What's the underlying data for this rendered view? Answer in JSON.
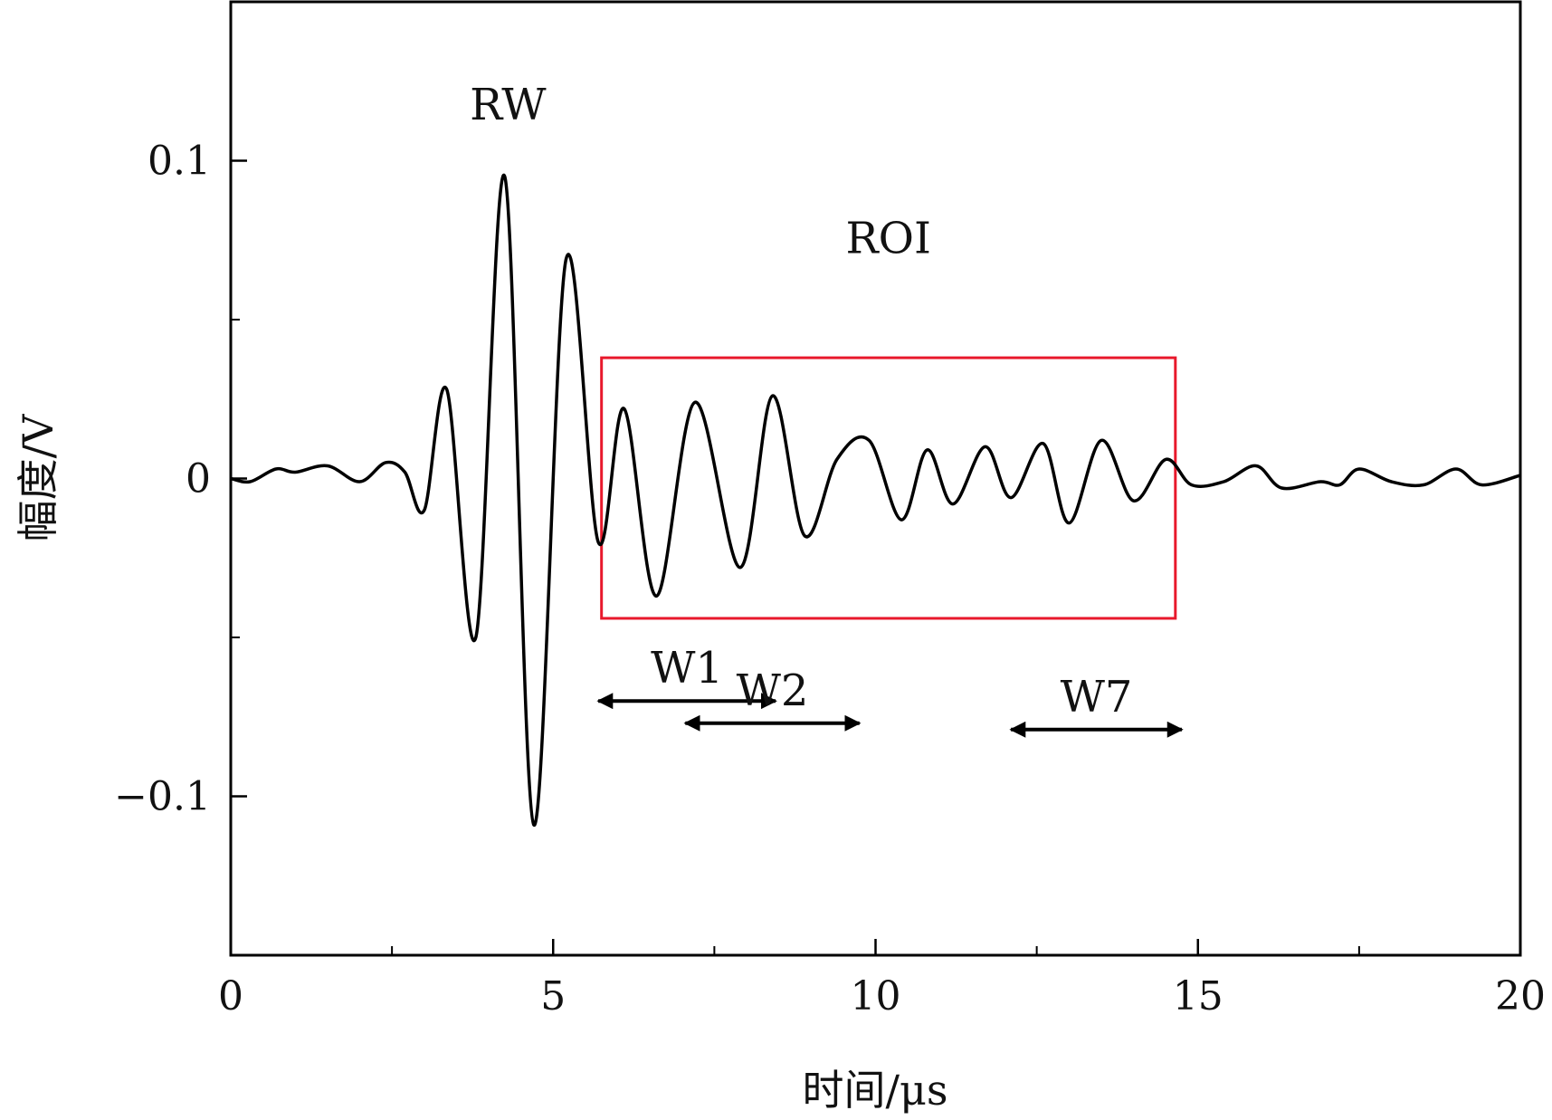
{
  "chart_data": {
    "type": "line",
    "title": "",
    "xlabel": "时间/μs",
    "ylabel": "幅度/V",
    "xlim": [
      0,
      20
    ],
    "ylim": [
      -0.15,
      0.15
    ],
    "xticks": [
      0,
      5,
      10,
      15,
      20
    ],
    "xtick_labels": [
      "0",
      "5",
      "10",
      "15",
      "20"
    ],
    "x_minor_ticks": [
      2.5,
      7.5,
      12.5,
      17.5
    ],
    "yticks": [
      -0.1,
      0,
      0.1
    ],
    "ytick_labels": [
      "−0.1",
      "0",
      "0.1"
    ],
    "y_minor_ticks": [
      -0.05,
      0.05
    ],
    "grid": false,
    "series": [
      {
        "color": "#000000",
        "x": [
          0,
          0.3,
          0.7,
          1.0,
          1.5,
          2.0,
          2.4,
          2.7,
          3.0,
          3.35,
          3.8,
          4.25,
          4.7,
          5.2,
          5.7,
          6.1,
          6.6,
          7.2,
          7.9,
          8.4,
          8.9,
          9.4,
          9.9,
          10.4,
          10.8,
          11.2,
          11.7,
          12.1,
          12.6,
          13.0,
          13.5,
          14.0,
          14.5,
          14.9,
          15.4,
          15.9,
          16.3,
          16.9,
          17.2,
          17.5,
          18.0,
          18.5,
          19.0,
          19.4,
          20.0
        ],
        "values": [
          0,
          -0.001,
          0.003,
          0.002,
          0.004,
          -0.001,
          0.005,
          0.002,
          -0.01,
          0.028,
          -0.05,
          0.095,
          -0.109,
          0.069,
          -0.02,
          0.022,
          -0.037,
          0.024,
          -0.028,
          0.026,
          -0.018,
          0.006,
          0.012,
          -0.013,
          0.009,
          -0.008,
          0.01,
          -0.006,
          0.011,
          -0.014,
          0.012,
          -0.007,
          0.006,
          -0.002,
          -0.001,
          0.004,
          -0.003,
          -0.001,
          -0.002,
          0.003,
          -0.001,
          -0.002,
          0.003,
          -0.002,
          0.001
        ]
      }
    ],
    "annotations": [
      {
        "text": "RW",
        "x": 4.3,
        "y": 0.113
      },
      {
        "text": "ROI",
        "x": 10.2,
        "y": 0.071
      }
    ],
    "roi_box": {
      "x0": 5.75,
      "x1": 14.65,
      "y0": -0.044,
      "y1": 0.038,
      "color": "#e8192c"
    },
    "windows": [
      {
        "label": "W1",
        "x0": 5.7,
        "x1": 8.45,
        "y": -0.07
      },
      {
        "label": "W2",
        "x0": 7.05,
        "x1": 9.75,
        "y": -0.077
      },
      {
        "label": "W7",
        "x0": 12.1,
        "x1": 14.75,
        "y": -0.079
      }
    ]
  }
}
